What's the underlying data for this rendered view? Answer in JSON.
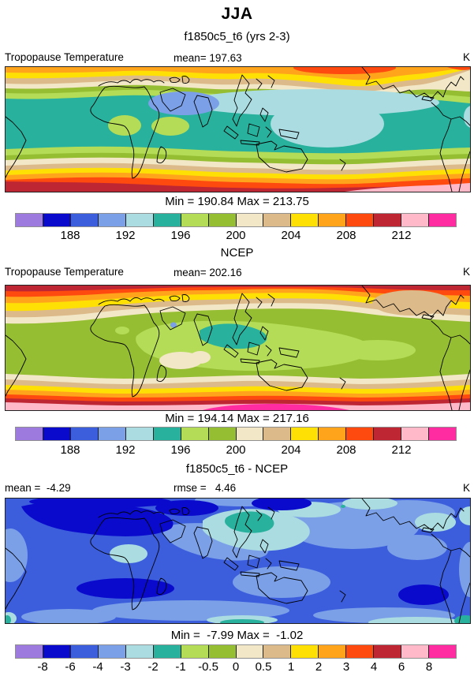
{
  "header": {
    "season_title": "JJA",
    "case_subtitle": "f1850c5_t6 (yrs 2-3)"
  },
  "palette": [
    "#9D7BDE",
    "#0A0ACD",
    "#3C5EDD",
    "#7BA0E8",
    "#AADCE1",
    "#28B19D",
    "#B5DC56",
    "#96BE33",
    "#F2E7C6",
    "#DCBA8A",
    "#FFE005",
    "#FFA41B",
    "#FE4A0F",
    "#BE2633",
    "#FFB9C9",
    "#FF2BA1"
  ],
  "chart_data": [
    {
      "type": "heatmap",
      "panel": "model",
      "season": "JJA",
      "case": "f1850c5_t6 (yrs 2-3)",
      "variable": "Tropopause Temperature",
      "units": "K",
      "mean": 197.63,
      "mean_text": "mean= 197.63",
      "min": 190.84,
      "max": 213.75,
      "minmax_text": "Min = 190.84 Max = 213.75",
      "contour_levels": [
        186,
        188,
        190,
        192,
        194,
        196,
        198,
        200,
        202,
        204,
        206,
        208,
        210,
        212,
        214
      ],
      "ticks": [
        {
          "t": "188",
          "b": 2
        },
        {
          "t": "192",
          "b": 4
        },
        {
          "t": "196",
          "b": 6
        },
        {
          "t": "200",
          "b": 8
        },
        {
          "t": "204",
          "b": 10
        },
        {
          "t": "208",
          "b": 12
        },
        {
          "t": "212",
          "b": 14
        }
      ]
    },
    {
      "type": "heatmap",
      "panel": "reference",
      "title": "NCEP",
      "variable": "Tropopause Temperature",
      "units": "K",
      "mean": 202.16,
      "mean_text": "mean= 202.16",
      "min": 194.14,
      "max": 217.16,
      "minmax_text": "Min = 194.14 Max = 217.16",
      "contour_levels": [
        186,
        188,
        190,
        192,
        194,
        196,
        198,
        200,
        202,
        204,
        206,
        208,
        210,
        212,
        214
      ],
      "ticks": [
        {
          "t": "188",
          "b": 2
        },
        {
          "t": "192",
          "b": 4
        },
        {
          "t": "196",
          "b": 6
        },
        {
          "t": "200",
          "b": 8
        },
        {
          "t": "204",
          "b": 10
        },
        {
          "t": "208",
          "b": 12
        },
        {
          "t": "212",
          "b": 14
        }
      ]
    },
    {
      "type": "heatmap",
      "panel": "difference",
      "title": "f1850c5_t6 - NCEP",
      "variable": "Tropopause Temperature",
      "units": "K",
      "mean": -4.29,
      "mean_text": "mean =  -4.29",
      "rmse": 4.46,
      "rmse_text": "rmse =   4.46",
      "min": -7.99,
      "max": -1.02,
      "minmax_text": "Min =  -7.99 Max =  -1.02",
      "contour_levels": [
        -8,
        -6,
        -4,
        -3,
        -2,
        -1,
        -0.5,
        0,
        0.5,
        1,
        2,
        3,
        4,
        6,
        8
      ],
      "ticks": [
        {
          "t": "-8",
          "b": 1
        },
        {
          "t": "-6",
          "b": 2
        },
        {
          "t": "-4",
          "b": 3
        },
        {
          "t": "-3",
          "b": 4
        },
        {
          "t": "-2",
          "b": 5
        },
        {
          "t": "-1",
          "b": 6
        },
        {
          "t": "-0.5",
          "b": 7
        },
        {
          "t": "0",
          "b": 8
        },
        {
          "t": "0.5",
          "b": 9
        },
        {
          "t": "1",
          "b": 10
        },
        {
          "t": "2",
          "b": 11
        },
        {
          "t": "3",
          "b": 12
        },
        {
          "t": "4",
          "b": 13
        },
        {
          "t": "6",
          "b": 14
        },
        {
          "t": "8",
          "b": 15
        }
      ]
    }
  ]
}
